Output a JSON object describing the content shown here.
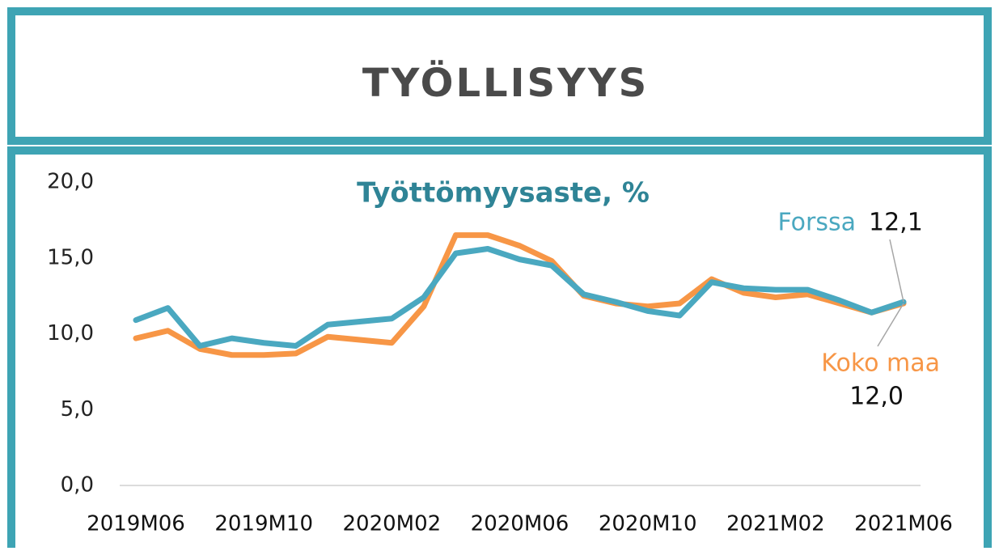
{
  "header": {
    "title": "TYÖLLISYYS"
  },
  "chart_data": {
    "type": "line",
    "title": "Työttömyysaste, %",
    "categories": [
      "2019M06",
      null,
      null,
      null,
      "2019M10",
      null,
      null,
      null,
      "2020M02",
      null,
      null,
      null,
      "2020M06",
      null,
      null,
      null,
      "2020M10",
      null,
      null,
      null,
      "2021M02",
      null,
      null,
      null,
      "2021M06"
    ],
    "series": [
      {
        "name": "Koko maa",
        "color": "#f79646",
        "values": [
          9.7,
          10.2,
          9.0,
          8.6,
          8.6,
          8.7,
          9.8,
          9.6,
          9.4,
          11.8,
          16.5,
          16.5,
          15.8,
          14.8,
          12.5,
          12.0,
          11.8,
          12.0,
          13.6,
          12.7,
          12.4,
          12.6,
          12.0,
          11.4,
          12.0
        ],
        "value_labels": [
          null,
          null,
          null,
          null,
          null,
          null,
          null,
          null,
          null,
          null,
          null,
          null,
          null,
          null,
          null,
          null,
          null,
          null,
          null,
          null,
          null,
          null,
          null,
          null,
          "12,0"
        ]
      },
      {
        "name": "Forssa",
        "color": "#4aa8c0",
        "values": [
          10.9,
          11.7,
          9.2,
          9.7,
          9.4,
          9.2,
          10.6,
          10.8,
          11.0,
          12.4,
          15.3,
          15.6,
          14.9,
          14.5,
          12.6,
          12.1,
          11.5,
          11.2,
          13.4,
          13.0,
          12.9,
          12.9,
          12.2,
          11.4,
          12.1
        ],
        "value_labels": [
          null,
          null,
          null,
          null,
          null,
          null,
          null,
          null,
          null,
          null,
          null,
          null,
          null,
          null,
          null,
          null,
          null,
          null,
          null,
          null,
          null,
          null,
          null,
          null,
          "12,1"
        ]
      }
    ],
    "ylim": [
      0,
      20
    ],
    "yticks": [
      {
        "value": 0,
        "label": "0,0"
      },
      {
        "value": 5,
        "label": "5,0"
      },
      {
        "value": 10,
        "label": "10,0"
      },
      {
        "value": 15,
        "label": "15,0"
      },
      {
        "value": 20,
        "label": "20,0"
      }
    ],
    "grid": false
  }
}
